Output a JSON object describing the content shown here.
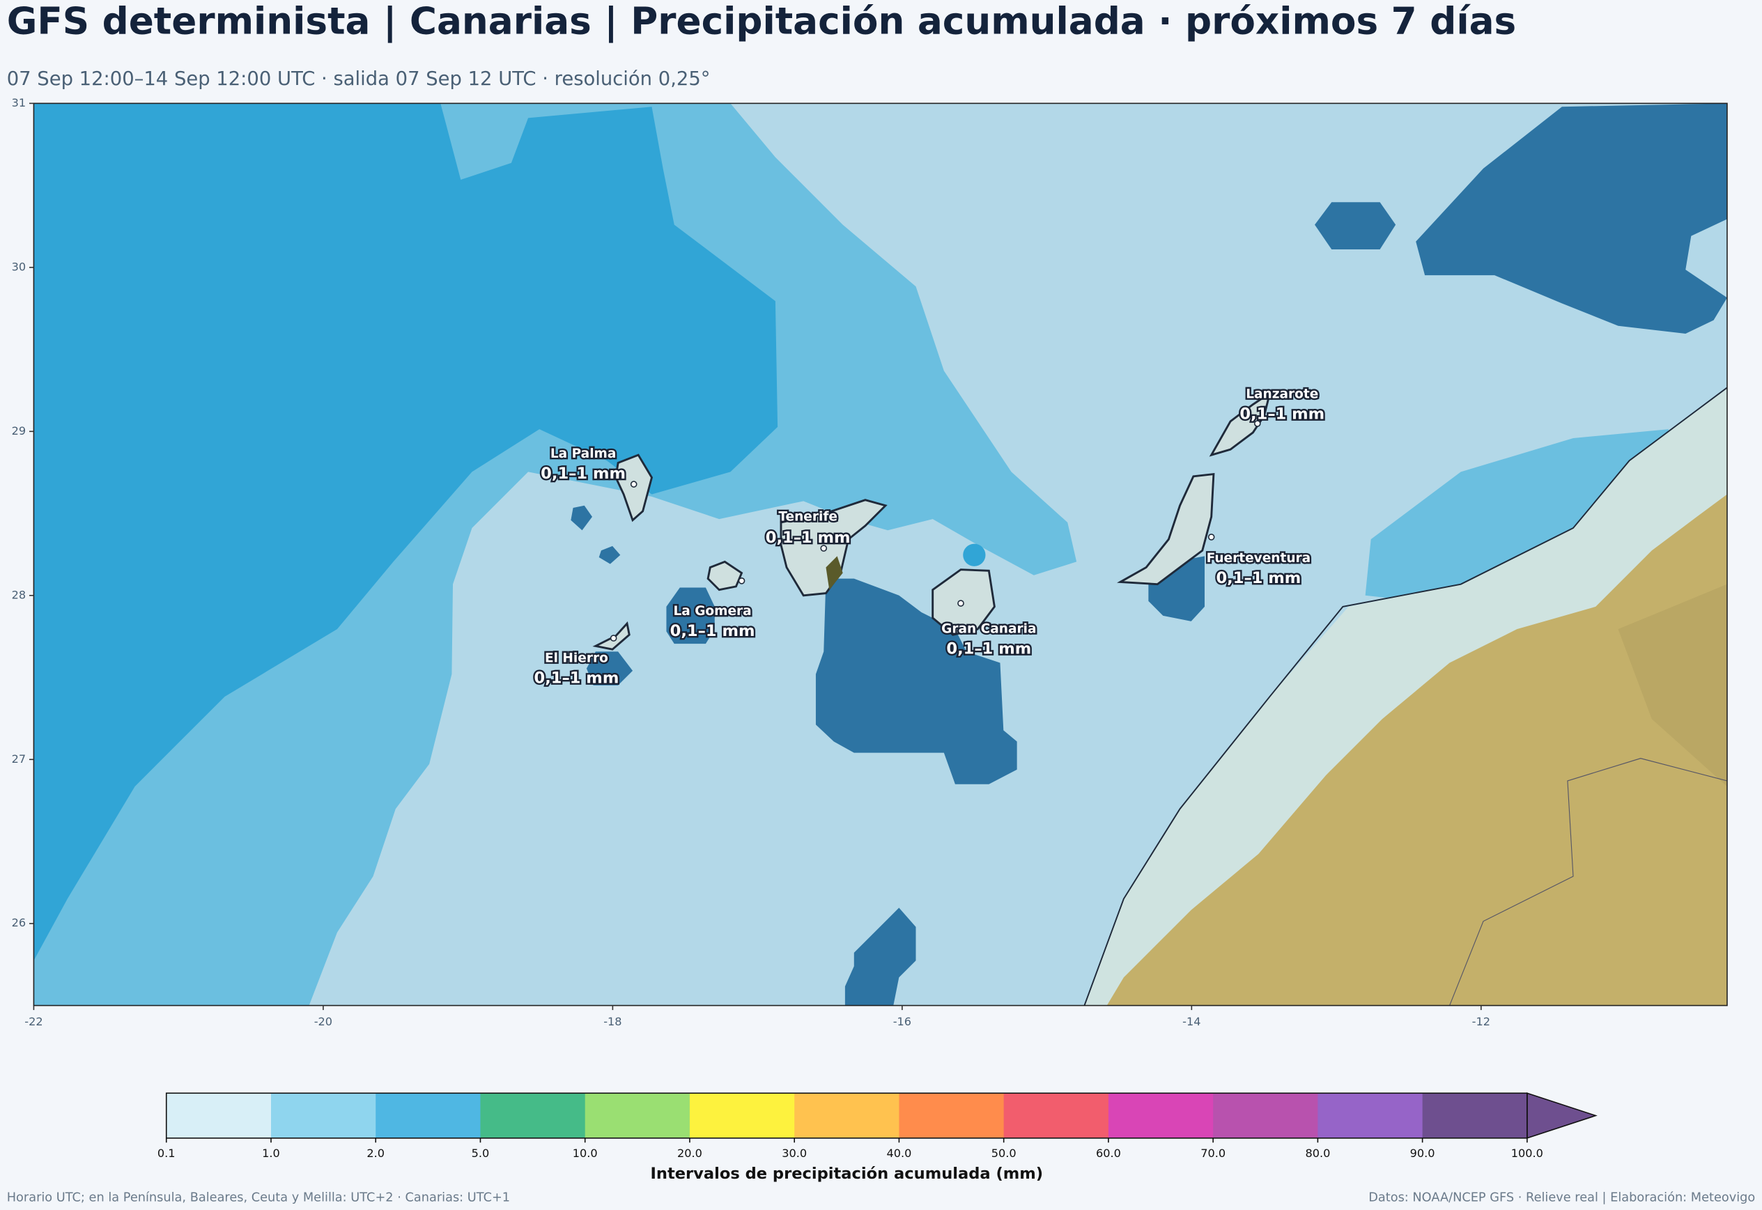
{
  "header": {
    "title": "GFS determinista | Canarias | Precipitación acumulada · próximos 7 días",
    "subtitle": "07 Sep 12:00–14 Sep 12:00 UTC · salida 07 Sep 12 UTC · resolución 0,25°"
  },
  "map": {
    "xlim": [
      -22,
      -10.3
    ],
    "ylim": [
      25.5,
      31
    ],
    "xticks": [
      -22,
      -20,
      -18,
      -16,
      -14,
      -12
    ],
    "yticks": [
      26,
      27,
      28,
      29,
      30,
      31
    ],
    "islands": [
      {
        "name": "La Palma",
        "value_label": "0,1–1 mm"
      },
      {
        "name": "Tenerife",
        "value_label": "0,1–1 mm"
      },
      {
        "name": "La Gomera",
        "value_label": "0,1–1 mm"
      },
      {
        "name": "El Hierro",
        "value_label": "0,1–1 mm"
      },
      {
        "name": "Gran Canaria",
        "value_label": "0,1–1 mm"
      },
      {
        "name": "Lanzarote",
        "value_label": "0,1–1 mm"
      },
      {
        "name": "Fuerteventura",
        "value_label": "0,1–1 mm"
      }
    ]
  },
  "colorbar": {
    "label": "Intervalos de precipitación acumulada (mm)",
    "bounds": [
      0.1,
      {
        "value": 1,
        "label": "1.0"
      },
      {
        "value": 2,
        "label": "2.0"
      },
      {
        "value": 5,
        "label": "5.0"
      },
      {
        "value": 10,
        "label": "10.0"
      },
      {
        "value": 20,
        "label": "20.0"
      },
      {
        "value": 30,
        "label": "30.0"
      },
      {
        "value": 40,
        "label": "40.0"
      },
      {
        "value": 50,
        "label": "50.0"
      },
      {
        "value": 60,
        "label": "60.0"
      },
      {
        "value": 70,
        "label": "70.0"
      },
      {
        "value": 80,
        "label": "80.0"
      },
      {
        "value": 90,
        "label": "90.0"
      },
      {
        "value": 100,
        "label": "100.0"
      }
    ],
    "colors": [
      "#d8eff7",
      "#8fd5ee",
      "#4fb7e3",
      "#45bb88",
      "#9adf72",
      "#fdf23e",
      "#ffc24f",
      "#ff8c4c",
      "#f25d6d",
      "#d945b6",
      "#b852ae",
      "#9664c8",
      "#6e4f8f"
    ],
    "extend_color": "#6e4f8f"
  },
  "footer": {
    "left": "Horario UTC; en la Península, Baleares, Ceuta y Melilla: UTC+2 · Canarias: UTC+1",
    "right": "Datos: NOAA/NCEP GFS · Relieve real | Elaboración: Meteovigo"
  }
}
